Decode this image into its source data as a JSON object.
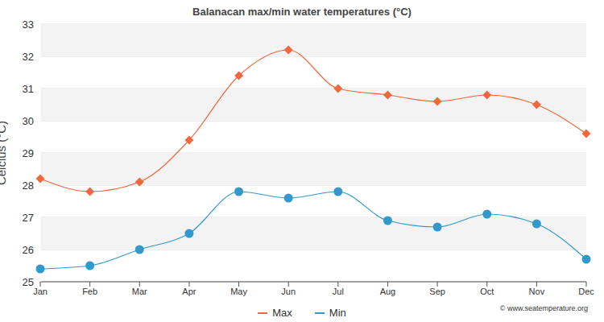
{
  "chart_data": {
    "type": "line",
    "title": "Balanacan max/min water temperatures (°C)",
    "y_label": "Celcius (°C)",
    "annotations": [
      "© www.seatemperature.org"
    ],
    "categories": [
      "Jan",
      "Feb",
      "Mar",
      "Apr",
      "May",
      "Jun",
      "Jul",
      "Aug",
      "Sep",
      "Oct",
      "Nov",
      "Dec"
    ],
    "series": [
      {
        "name": "Max",
        "color": "#f0683c",
        "marker": "diamond",
        "values": [
          28.2,
          27.8,
          28.1,
          29.4,
          31.4,
          32.2,
          31.0,
          30.8,
          30.6,
          30.8,
          30.5,
          29.6
        ]
      },
      {
        "name": "Min",
        "color": "#3399cc",
        "marker": "circle",
        "values": [
          25.4,
          25.5,
          26.0,
          26.5,
          27.8,
          27.6,
          27.8,
          26.9,
          26.7,
          27.1,
          26.8,
          25.7
        ]
      }
    ],
    "ylim": [
      25,
      33
    ],
    "yticks": [
      25,
      26,
      27,
      28,
      29,
      30,
      31,
      32,
      33
    ],
    "grid": true,
    "legend": "bottom"
  }
}
